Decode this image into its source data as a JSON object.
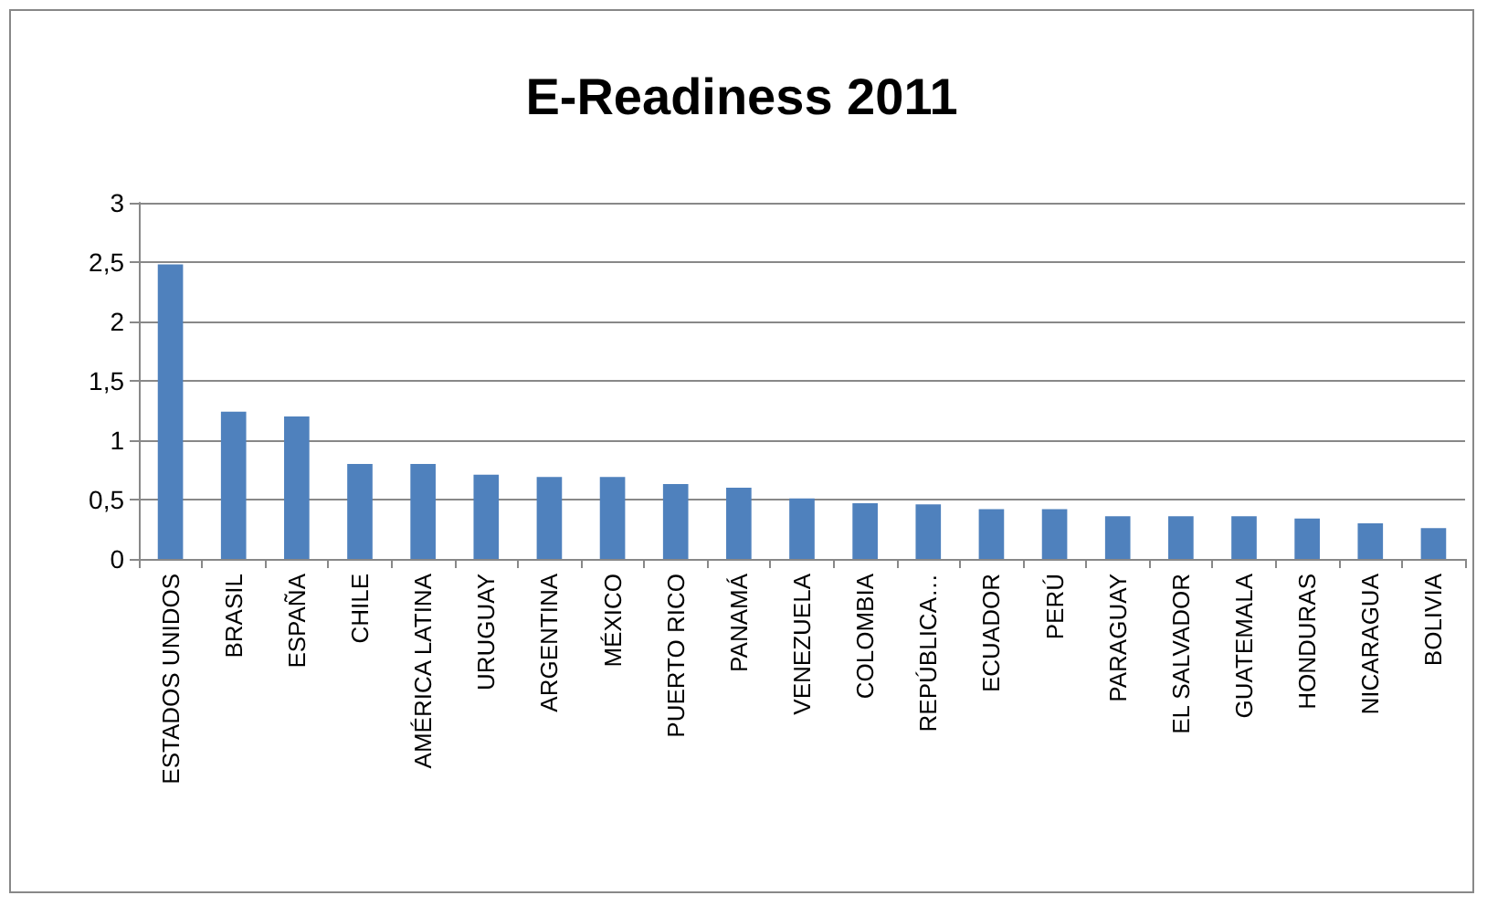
{
  "chart_data": {
    "type": "bar",
    "title": "E-Readiness 2011",
    "categories": [
      "ESTADOS UNIDOS",
      "BRASIL",
      "ESPAÑA",
      "CHILE",
      "AMÉRICA LATINA",
      "URUGUAY",
      "ARGENTINA",
      "MÉXICO",
      "PUERTO RICO",
      "PANAMÁ",
      "VENEZUELA",
      "COLOMBIA",
      "REPÚBLICA…",
      "ECUADOR",
      "PERÚ",
      "PARAGUAY",
      "EL SALVADOR",
      "GUATEMALA",
      "HONDURAS",
      "NICARAGUA",
      "BOLIVIA"
    ],
    "values": [
      2.48,
      1.24,
      1.2,
      0.8,
      0.8,
      0.71,
      0.69,
      0.69,
      0.63,
      0.6,
      0.51,
      0.47,
      0.46,
      0.42,
      0.42,
      0.36,
      0.36,
      0.36,
      0.34,
      0.3,
      0.26
    ],
    "color": "#4f81bd",
    "ylim": [
      0,
      3
    ],
    "yticks": [
      {
        "value": 0,
        "label": "0"
      },
      {
        "value": 0.5,
        "label": "0,5"
      },
      {
        "value": 1,
        "label": "1"
      },
      {
        "value": 1.5,
        "label": "1,5"
      },
      {
        "value": 2,
        "label": "2"
      },
      {
        "value": 2.5,
        "label": "2,5"
      },
      {
        "value": 3,
        "label": "3"
      }
    ],
    "grid": "y"
  }
}
